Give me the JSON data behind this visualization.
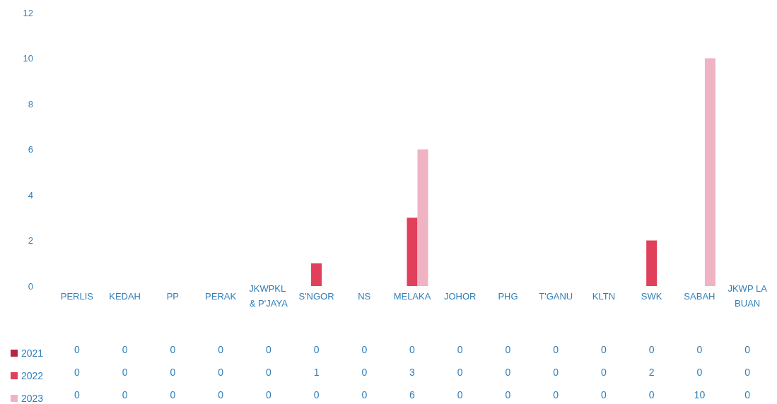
{
  "chart_data": {
    "type": "bar",
    "categories": [
      "PERLIS",
      "KEDAH",
      "PP",
      "PERAK",
      "JKWPKL & P'JAYA",
      "S'NGOR",
      "NS",
      "MELAKA",
      "JOHOR",
      "PHG",
      "T'GANU",
      "KLTN",
      "SWK",
      "SABAH",
      "JKWP LABUAN"
    ],
    "series": [
      {
        "name": "2021",
        "color": "#b5253f",
        "values": [
          0,
          0,
          0,
          0,
          0,
          0,
          0,
          0,
          0,
          0,
          0,
          0,
          0,
          0,
          0
        ]
      },
      {
        "name": "2022",
        "color": "#e0405a",
        "values": [
          0,
          0,
          0,
          0,
          0,
          1,
          0,
          3,
          0,
          0,
          0,
          0,
          2,
          0,
          0
        ]
      },
      {
        "name": "2023",
        "color": "#f0b3c3",
        "values": [
          0,
          0,
          0,
          0,
          0,
          0,
          0,
          6,
          0,
          0,
          0,
          0,
          0,
          10,
          0
        ]
      }
    ],
    "ylim": [
      0,
      12
    ],
    "yticks": [
      0,
      2,
      4,
      6,
      8,
      10,
      12
    ],
    "grid": false,
    "legend": "bottom left",
    "data_labels": true
  }
}
